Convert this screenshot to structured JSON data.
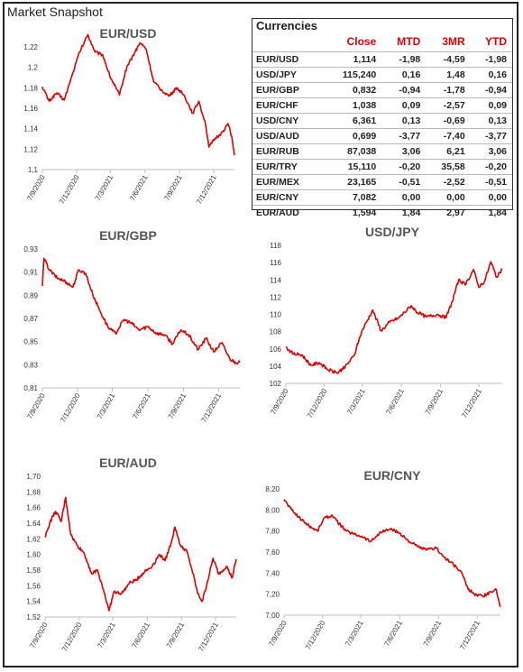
{
  "page_title": "Market Snapshot",
  "table": {
    "title": "Currencies",
    "columns": [
      "Close",
      "MTD",
      "3MR",
      "YTD"
    ],
    "rows": [
      {
        "pair": "EUR/USD",
        "close": "1,114",
        "mtd": "-1,98",
        "r3m": "-4,59",
        "ytd": "-1,98"
      },
      {
        "pair": "USD/JPY",
        "close": "115,240",
        "mtd": "0,16",
        "r3m": "1,48",
        "ytd": "0,16"
      },
      {
        "pair": "EUR/GBP",
        "close": "0,832",
        "mtd": "-0,94",
        "r3m": "-1,78",
        "ytd": "-0,94"
      },
      {
        "pair": "EUR/CHF",
        "close": "1,038",
        "mtd": "0,09",
        "r3m": "-2,57",
        "ytd": "0,09"
      },
      {
        "pair": "USD/CNY",
        "close": "6,361",
        "mtd": "0,13",
        "r3m": "-0,69",
        "ytd": "0,13"
      },
      {
        "pair": "USD/AUD",
        "close": "0,699",
        "mtd": "-3,77",
        "r3m": "-7,40",
        "ytd": "-3,77"
      },
      {
        "pair": "EUR/RUB",
        "close": "87,038",
        "mtd": "3,06",
        "r3m": "6,21",
        "ytd": "3,06"
      },
      {
        "pair": "EUR/TRY",
        "close": "15,110",
        "mtd": "-0,20",
        "r3m": "35,58",
        "ytd": "-0,20"
      },
      {
        "pair": "EUR/MEX",
        "close": "23,165",
        "mtd": "-0,51",
        "r3m": "-2,52",
        "ytd": "-0,51"
      },
      {
        "pair": "EUR/CNY",
        "close": "7,082",
        "mtd": "0,00",
        "r3m": "0,00",
        "ytd": "0,00"
      },
      {
        "pair": "EUR/AUD",
        "close": "1,594",
        "mtd": "1,84",
        "r3m": "2,97",
        "ytd": "1,84"
      }
    ]
  },
  "colors": {
    "series": "#e00000",
    "axis": "#bfbfbf",
    "table_header": "#e00000"
  },
  "chart_data": [
    {
      "type": "line",
      "title": "EUR/USD",
      "xlim": [
        "2020-09-07",
        "2022-01-31"
      ],
      "ylim": [
        1.1,
        1.22
      ],
      "yticks": [
        "1,1",
        "1,12",
        "1,14",
        "1,16",
        "1,18",
        "1,2",
        "1,22"
      ],
      "xticks": [
        {
          "date": "2020-09-07",
          "label": "7/9/2020"
        },
        {
          "date": "2020-12-07",
          "label": "7/12/2020"
        },
        {
          "date": "2021-03-07",
          "label": "7/3/2021"
        },
        {
          "date": "2021-06-07",
          "label": "7/6/2021"
        },
        {
          "date": "2021-09-07",
          "label": "7/9/2021"
        },
        {
          "date": "2021-12-07",
          "label": "7/12/2021"
        }
      ],
      "points": [
        [
          "2020-09-07",
          1.181
        ],
        [
          "2020-09-25",
          1.167
        ],
        [
          "2020-10-15",
          1.175
        ],
        [
          "2020-11-04",
          1.168
        ],
        [
          "2020-11-25",
          1.192
        ],
        [
          "2020-12-15",
          1.215
        ],
        [
          "2021-01-06",
          1.232
        ],
        [
          "2021-01-25",
          1.215
        ],
        [
          "2021-02-15",
          1.212
        ],
        [
          "2021-03-05",
          1.192
        ],
        [
          "2021-03-31",
          1.173
        ],
        [
          "2021-04-20",
          1.201
        ],
        [
          "2021-05-10",
          1.214
        ],
        [
          "2021-05-25",
          1.224
        ],
        [
          "2021-06-10",
          1.218
        ],
        [
          "2021-06-30",
          1.186
        ],
        [
          "2021-07-20",
          1.178
        ],
        [
          "2021-08-10",
          1.172
        ],
        [
          "2021-08-31",
          1.18
        ],
        [
          "2021-09-20",
          1.172
        ],
        [
          "2021-10-12",
          1.155
        ],
        [
          "2021-10-28",
          1.167
        ],
        [
          "2021-11-15",
          1.145
        ],
        [
          "2021-11-24",
          1.122
        ],
        [
          "2021-12-10",
          1.13
        ],
        [
          "2021-12-31",
          1.137
        ],
        [
          "2022-01-14",
          1.145
        ],
        [
          "2022-01-24",
          1.132
        ],
        [
          "2022-01-31",
          1.114
        ]
      ]
    },
    {
      "type": "line",
      "title": "EUR/GBP",
      "xlim": [
        "2020-09-07",
        "2022-01-31"
      ],
      "ylim": [
        0.81,
        0.93
      ],
      "yticks": [
        "0,81",
        "0,83",
        "0,85",
        "0,87",
        "0,89",
        "0,91",
        "0,93"
      ],
      "xticks": [
        {
          "date": "2020-09-07",
          "label": "7/9/2020"
        },
        {
          "date": "2020-12-07",
          "label": "7/12/2020"
        },
        {
          "date": "2021-03-07",
          "label": "7/3/2021"
        },
        {
          "date": "2021-06-07",
          "label": "7/6/2021"
        },
        {
          "date": "2021-09-07",
          "label": "7/9/2021"
        },
        {
          "date": "2021-12-07",
          "label": "7/12/2021"
        }
      ],
      "points": [
        [
          "2020-09-07",
          0.898
        ],
        [
          "2020-09-11",
          0.922
        ],
        [
          "2020-09-25",
          0.912
        ],
        [
          "2020-10-15",
          0.905
        ],
        [
          "2020-11-05",
          0.902
        ],
        [
          "2020-11-25",
          0.897
        ],
        [
          "2020-12-10",
          0.912
        ],
        [
          "2020-12-28",
          0.909
        ],
        [
          "2021-01-15",
          0.891
        ],
        [
          "2021-02-05",
          0.875
        ],
        [
          "2021-02-25",
          0.862
        ],
        [
          "2021-03-15",
          0.857
        ],
        [
          "2021-04-06",
          0.869
        ],
        [
          "2021-04-25",
          0.866
        ],
        [
          "2021-05-15",
          0.86
        ],
        [
          "2021-06-07",
          0.863
        ],
        [
          "2021-06-30",
          0.857
        ],
        [
          "2021-07-20",
          0.856
        ],
        [
          "2021-08-10",
          0.848
        ],
        [
          "2021-08-31",
          0.86
        ],
        [
          "2021-09-20",
          0.856
        ],
        [
          "2021-10-15",
          0.843
        ],
        [
          "2021-11-05",
          0.853
        ],
        [
          "2021-11-24",
          0.841
        ],
        [
          "2021-12-15",
          0.849
        ],
        [
          "2022-01-05",
          0.835
        ],
        [
          "2022-01-20",
          0.832
        ],
        [
          "2022-01-31",
          0.832
        ]
      ]
    },
    {
      "type": "line",
      "title": "USD/JPY",
      "xlim": [
        "2020-09-07",
        "2022-01-31"
      ],
      "ylim": [
        102,
        118
      ],
      "yticks": [
        "102",
        "104",
        "106",
        "108",
        "110",
        "112",
        "114",
        "116",
        "118"
      ],
      "xticks": [
        {
          "date": "2020-09-07",
          "label": "7/9/2020"
        },
        {
          "date": "2020-12-07",
          "label": "7/12/2020"
        },
        {
          "date": "2021-03-07",
          "label": "7/3/2021"
        },
        {
          "date": "2021-06-07",
          "label": "7/6/2021"
        },
        {
          "date": "2021-09-07",
          "label": "7/9/2021"
        },
        {
          "date": "2021-12-07",
          "label": "7/12/2021"
        }
      ],
      "points": [
        [
          "2020-09-07",
          106.2
        ],
        [
          "2020-09-25",
          105.4
        ],
        [
          "2020-10-15",
          105.3
        ],
        [
          "2020-11-05",
          104.1
        ],
        [
          "2020-11-25",
          104.4
        ],
        [
          "2020-12-15",
          103.6
        ],
        [
          "2021-01-06",
          103.2
        ],
        [
          "2021-01-25",
          103.9
        ],
        [
          "2021-02-15",
          105.2
        ],
        [
          "2021-03-05",
          108.0
        ],
        [
          "2021-03-31",
          110.5
        ],
        [
          "2021-04-20",
          108.1
        ],
        [
          "2021-05-10",
          109.1
        ],
        [
          "2021-06-01",
          109.6
        ],
        [
          "2021-06-30",
          111.0
        ],
        [
          "2021-07-15",
          110.2
        ],
        [
          "2021-08-05",
          109.7
        ],
        [
          "2021-08-31",
          110.0
        ],
        [
          "2021-09-20",
          109.6
        ],
        [
          "2021-10-05",
          111.5
        ],
        [
          "2021-10-20",
          114.0
        ],
        [
          "2021-11-05",
          113.4
        ],
        [
          "2021-11-24",
          115.2
        ],
        [
          "2021-12-06",
          113.2
        ],
        [
          "2021-12-20",
          113.8
        ],
        [
          "2022-01-04",
          116.1
        ],
        [
          "2022-01-18",
          114.3
        ],
        [
          "2022-01-31",
          115.2
        ]
      ]
    },
    {
      "type": "line",
      "title": "EUR/AUD",
      "xlim": [
        "2020-09-07",
        "2022-01-31"
      ],
      "ylim": [
        1.52,
        1.7
      ],
      "yticks": [
        "1,52",
        "1,54",
        "1,56",
        "1,58",
        "1,60",
        "1,62",
        "1,64",
        "1,66",
        "1,68",
        "1,70"
      ],
      "xticks": [
        {
          "date": "2020-09-07",
          "label": "7/9/2020"
        },
        {
          "date": "2020-12-07",
          "label": "7/12/2020"
        },
        {
          "date": "2021-03-07",
          "label": "7/3/2021"
        },
        {
          "date": "2021-06-07",
          "label": "7/6/2021"
        },
        {
          "date": "2021-09-07",
          "label": "7/9/2021"
        },
        {
          "date": "2021-12-07",
          "label": "7/12/2021"
        }
      ],
      "points": [
        [
          "2020-09-07",
          1.622
        ],
        [
          "2020-09-20",
          1.641
        ],
        [
          "2020-10-05",
          1.655
        ],
        [
          "2020-10-20",
          1.642
        ],
        [
          "2020-11-01",
          1.673
        ],
        [
          "2020-11-15",
          1.625
        ],
        [
          "2020-12-01",
          1.612
        ],
        [
          "2020-12-20",
          1.602
        ],
        [
          "2021-01-10",
          1.575
        ],
        [
          "2021-01-25",
          1.58
        ],
        [
          "2021-02-10",
          1.555
        ],
        [
          "2021-02-25",
          1.528
        ],
        [
          "2021-03-10",
          1.552
        ],
        [
          "2021-03-31",
          1.55
        ],
        [
          "2021-04-20",
          1.563
        ],
        [
          "2021-05-10",
          1.568
        ],
        [
          "2021-05-31",
          1.578
        ],
        [
          "2021-06-20",
          1.585
        ],
        [
          "2021-07-10",
          1.6
        ],
        [
          "2021-07-25",
          1.592
        ],
        [
          "2021-08-10",
          1.615
        ],
        [
          "2021-08-20",
          1.635
        ],
        [
          "2021-09-05",
          1.61
        ],
        [
          "2021-09-20",
          1.605
        ],
        [
          "2021-10-05",
          1.58
        ],
        [
          "2021-10-20",
          1.55
        ],
        [
          "2021-11-01",
          1.54
        ],
        [
          "2021-11-15",
          1.565
        ],
        [
          "2021-11-30",
          1.595
        ],
        [
          "2021-12-15",
          1.575
        ],
        [
          "2022-01-05",
          1.585
        ],
        [
          "2022-01-20",
          1.57
        ],
        [
          "2022-01-31",
          1.594
        ]
      ]
    },
    {
      "type": "line",
      "title": "EUR/CNY",
      "xlim": [
        "2020-09-07",
        "2022-01-31"
      ],
      "ylim": [
        7.0,
        8.2
      ],
      "yticks": [
        "7,00",
        "7,20",
        "7,40",
        "7,60",
        "7,80",
        "8,00",
        "8,20"
      ],
      "xticks": [
        {
          "date": "2020-09-07",
          "label": "7/9/2020"
        },
        {
          "date": "2020-12-07",
          "label": "7/12/2020"
        },
        {
          "date": "2021-03-07",
          "label": "7/3/2021"
        },
        {
          "date": "2021-06-07",
          "label": "7/6/2021"
        },
        {
          "date": "2021-09-07",
          "label": "7/9/2021"
        },
        {
          "date": "2021-12-07",
          "label": "7/12/2021"
        }
      ],
      "points": [
        [
          "2020-09-07",
          8.1
        ],
        [
          "2020-09-25",
          8.0
        ],
        [
          "2020-10-15",
          7.92
        ],
        [
          "2020-11-05",
          7.85
        ],
        [
          "2020-11-25",
          7.8
        ],
        [
          "2020-12-10",
          7.92
        ],
        [
          "2020-12-30",
          7.95
        ],
        [
          "2021-01-12",
          7.88
        ],
        [
          "2021-02-01",
          7.8
        ],
        [
          "2021-02-20",
          7.77
        ],
        [
          "2021-03-10",
          7.75
        ],
        [
          "2021-03-31",
          7.7
        ],
        [
          "2021-04-20",
          7.78
        ],
        [
          "2021-05-15",
          7.82
        ],
        [
          "2021-06-07",
          7.78
        ],
        [
          "2021-06-30",
          7.7
        ],
        [
          "2021-07-20",
          7.65
        ],
        [
          "2021-08-10",
          7.62
        ],
        [
          "2021-09-01",
          7.64
        ],
        [
          "2021-09-20",
          7.55
        ],
        [
          "2021-10-12",
          7.48
        ],
        [
          "2021-11-01",
          7.4
        ],
        [
          "2021-11-15",
          7.25
        ],
        [
          "2021-11-30",
          7.2
        ],
        [
          "2021-12-20",
          7.18
        ],
        [
          "2022-01-10",
          7.22
        ],
        [
          "2022-01-20",
          7.25
        ],
        [
          "2022-01-31",
          7.08
        ]
      ]
    }
  ]
}
